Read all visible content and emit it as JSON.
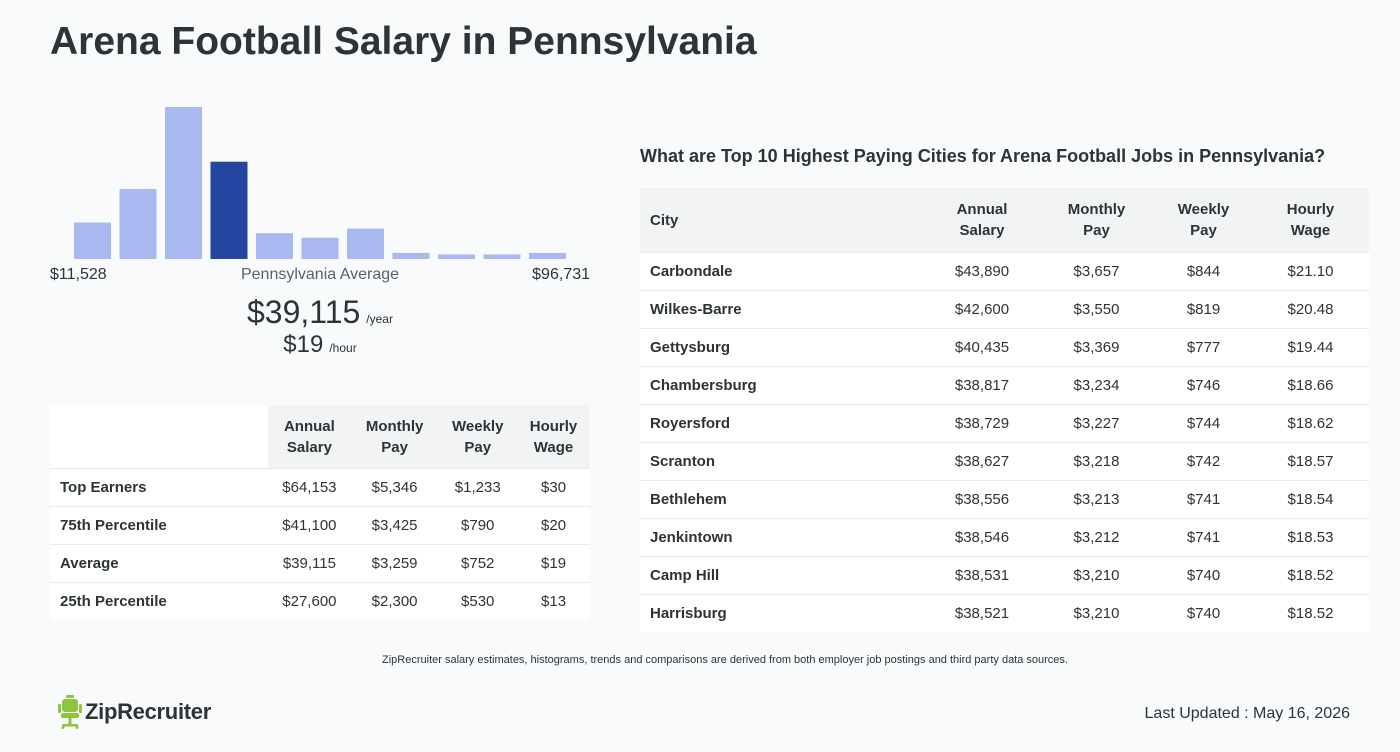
{
  "page": {
    "title": "Arena Football Salary in Pennsylvania",
    "disclaimer": "ZipRecruiter salary estimates, histograms, trends and comparisons are derived from both employer job postings and third party data sources.",
    "last_updated": "Last Updated : May 16, 2026",
    "logo_text": "ZipRecruiter"
  },
  "summary": {
    "min": "$11,528",
    "max": "$96,731",
    "avg_label": "Pennsylvania Average",
    "annual": "$39,115",
    "annual_unit": "/year",
    "hourly": "$19",
    "hourly_unit": "/hour"
  },
  "chart_data": {
    "type": "bar",
    "values": [
      24,
      46,
      100,
      64,
      17,
      14,
      20,
      4,
      3,
      3,
      4
    ],
    "highlight_index": 3,
    "colors": {
      "bar": "#a9b9ef",
      "highlight": "#2446a0"
    }
  },
  "percentiles": {
    "headers": [
      [
        "Annual",
        "Salary"
      ],
      [
        "Monthly",
        "Pay"
      ],
      [
        "Weekly",
        "Pay"
      ],
      [
        "Hourly",
        "Wage"
      ]
    ],
    "rows": [
      {
        "label": "Top Earners",
        "values": [
          "$64,153",
          "$5,346",
          "$1,233",
          "$30"
        ]
      },
      {
        "label": "75th Percentile",
        "values": [
          "$41,100",
          "$3,425",
          "$790",
          "$20"
        ]
      },
      {
        "label": "Average",
        "values": [
          "$39,115",
          "$3,259",
          "$752",
          "$19"
        ]
      },
      {
        "label": "25th Percentile",
        "values": [
          "$27,600",
          "$2,300",
          "$530",
          "$13"
        ]
      }
    ]
  },
  "cities": {
    "title": "What are Top 10 Highest Paying Cities for Arena Football Jobs in Pennsylvania?",
    "city_header": "City",
    "headers": [
      [
        "Annual",
        "Salary"
      ],
      [
        "Monthly",
        "Pay"
      ],
      [
        "Weekly",
        "Pay"
      ],
      [
        "Hourly",
        "Wage"
      ]
    ],
    "rows": [
      {
        "city": "Carbondale",
        "values": [
          "$43,890",
          "$3,657",
          "$844",
          "$21.10"
        ]
      },
      {
        "city": "Wilkes-Barre",
        "values": [
          "$42,600",
          "$3,550",
          "$819",
          "$20.48"
        ]
      },
      {
        "city": "Gettysburg",
        "values": [
          "$40,435",
          "$3,369",
          "$777",
          "$19.44"
        ]
      },
      {
        "city": "Chambersburg",
        "values": [
          "$38,817",
          "$3,234",
          "$746",
          "$18.66"
        ]
      },
      {
        "city": "Royersford",
        "values": [
          "$38,729",
          "$3,227",
          "$744",
          "$18.62"
        ]
      },
      {
        "city": "Scranton",
        "values": [
          "$38,627",
          "$3,218",
          "$742",
          "$18.57"
        ]
      },
      {
        "city": "Bethlehem",
        "values": [
          "$38,556",
          "$3,213",
          "$741",
          "$18.54"
        ]
      },
      {
        "city": "Jenkintown",
        "values": [
          "$38,546",
          "$3,212",
          "$741",
          "$18.53"
        ]
      },
      {
        "city": "Camp Hill",
        "values": [
          "$38,531",
          "$3,210",
          "$740",
          "$18.52"
        ]
      },
      {
        "city": "Harrisburg",
        "values": [
          "$38,521",
          "$3,210",
          "$740",
          "$18.52"
        ]
      }
    ]
  },
  "icons": {
    "logo": "ziprecruiter-chair-icon"
  },
  "colors": {
    "logo_green": "#8cc63e",
    "text": "#2d3436",
    "header_bg": "#f1f3f5"
  }
}
